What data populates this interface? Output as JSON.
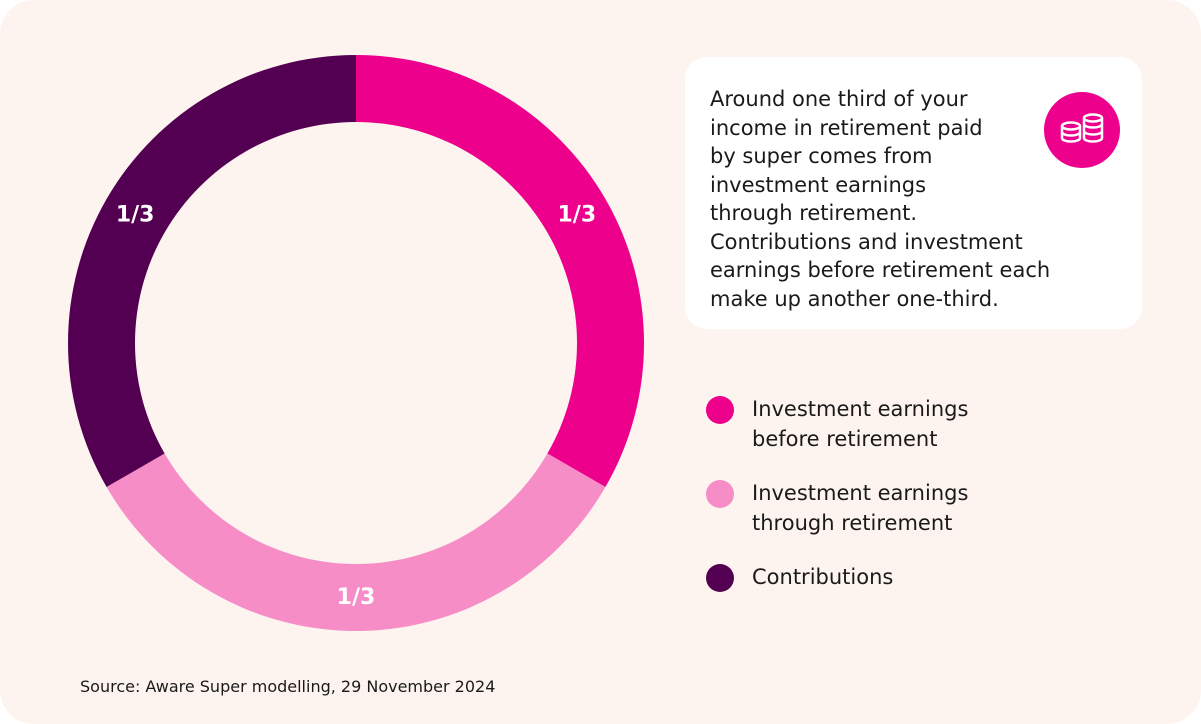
{
  "chart_data": {
    "type": "donut",
    "categories": [
      "Investment earnings before retirement",
      "Investment earnings through retirement",
      "Contributions"
    ],
    "values": [
      0.3333,
      0.3333,
      0.3333
    ],
    "value_labels": [
      "1/3",
      "1/3",
      "1/3"
    ],
    "colors": [
      "#ec008c",
      "#f68dc6",
      "#540052"
    ],
    "description": [
      "Around one third of your",
      "income in retirement paid",
      "by super comes from",
      "investment earnings",
      "through retirement.",
      "Contributions and investment",
      "earnings before retirement each",
      "make up another one-third."
    ],
    "source": "Source: Aware Super modelling, 29 November 2024"
  }
}
